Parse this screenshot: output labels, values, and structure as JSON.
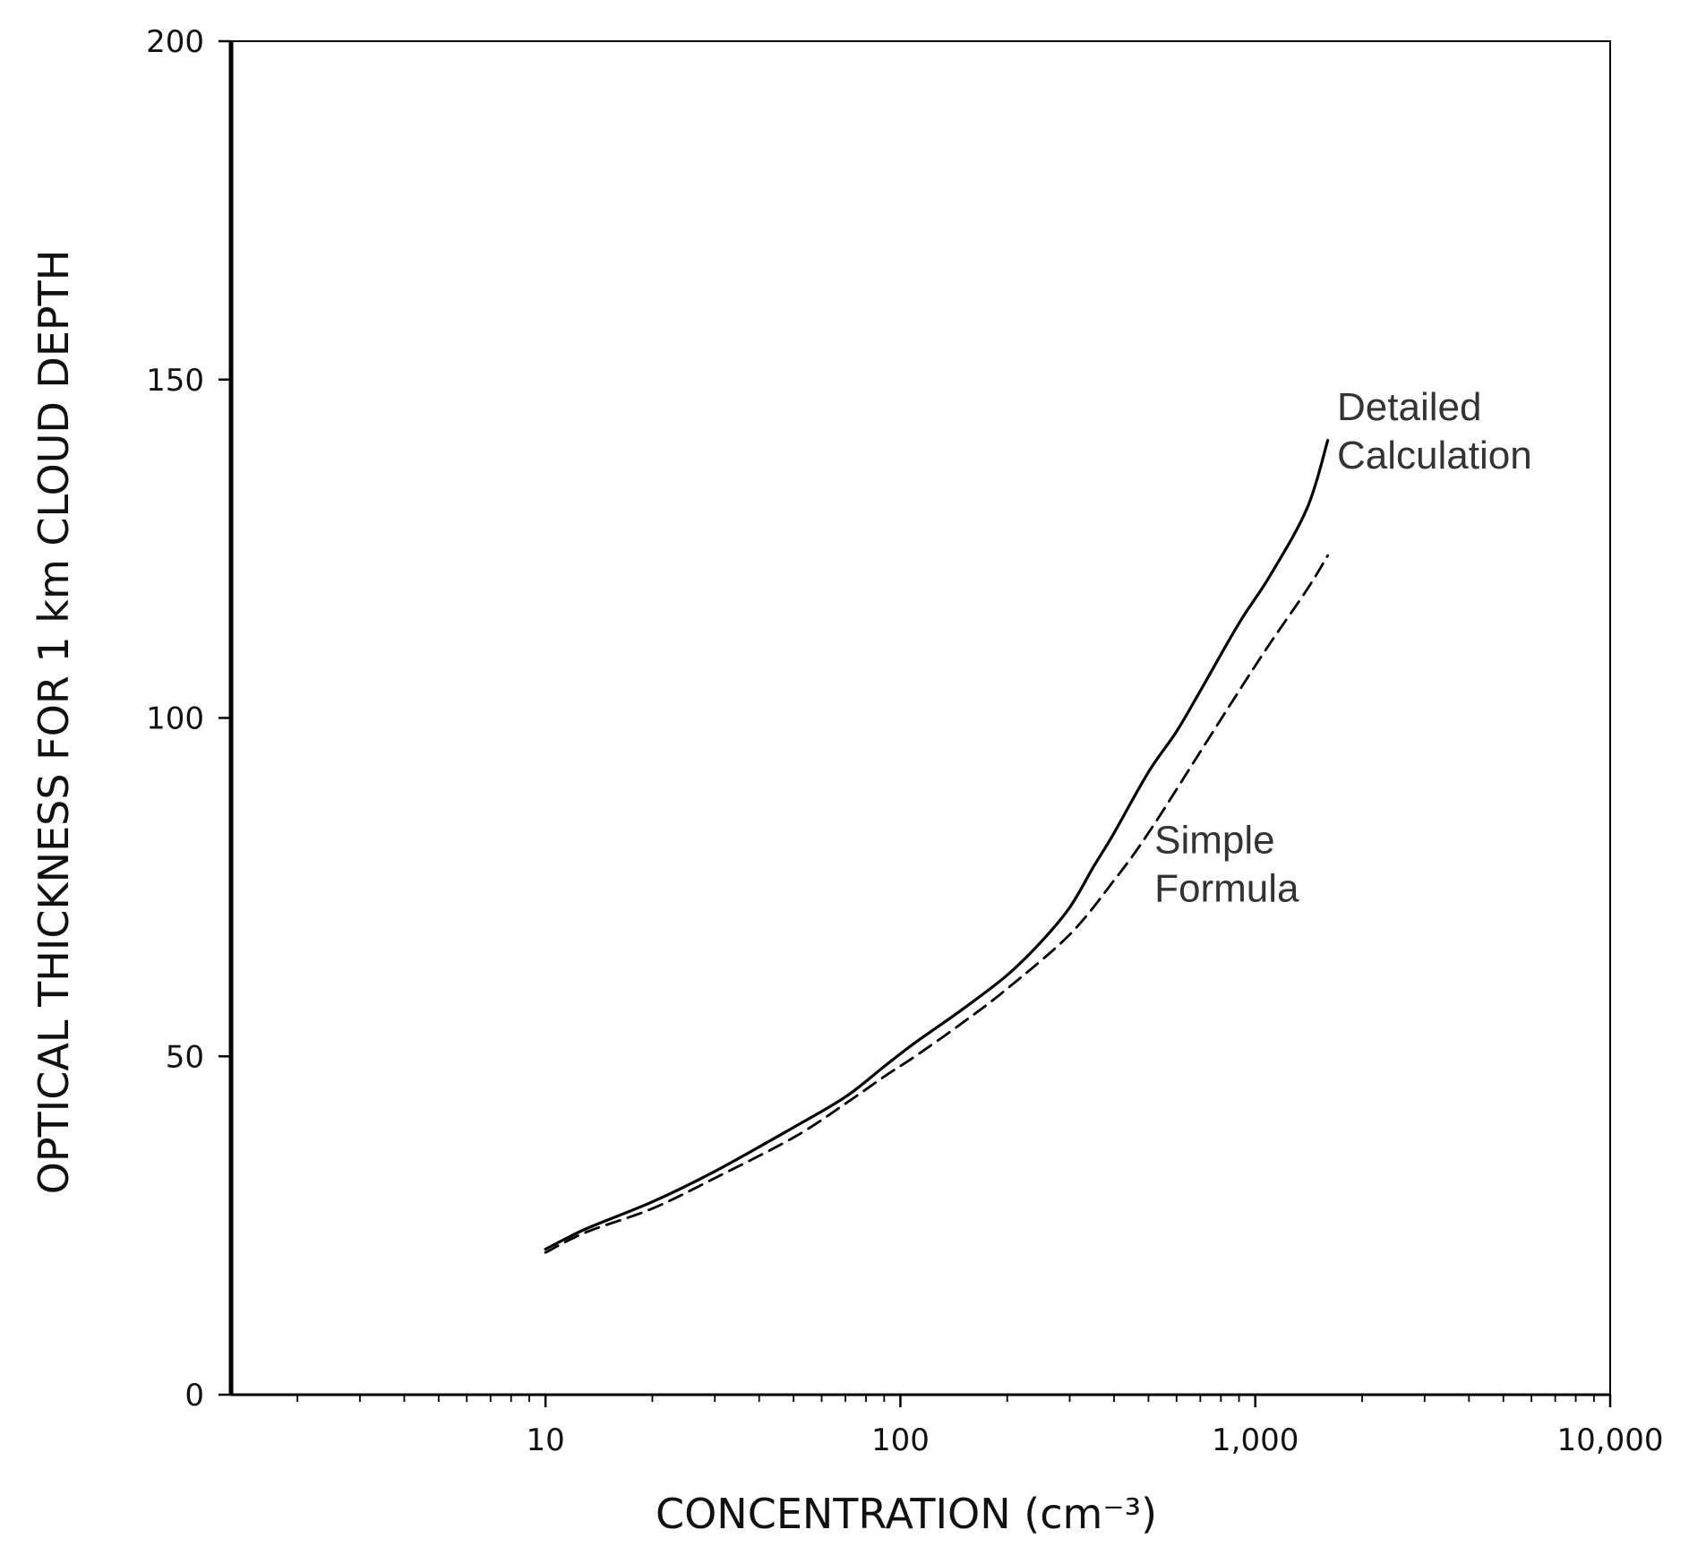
{
  "chart_data": {
    "type": "line",
    "xlabel": "CONCENTRATION   (cm⁻³)",
    "ylabel": "OPTICAL THICKNESS FOR 1 km CLOUD DEPTH",
    "xscale": "log",
    "xlim": [
      1.3,
      10000
    ],
    "ylim": [
      0,
      200
    ],
    "x_ticks": [
      10,
      100,
      1000,
      10000
    ],
    "x_tick_labels": [
      "10",
      "100",
      "1,000",
      "10,000"
    ],
    "y_ticks": [
      0,
      50,
      100,
      150,
      200
    ],
    "y_tick_labels": [
      "0",
      "50",
      "100",
      "150",
      "200"
    ],
    "grid": false,
    "series": [
      {
        "name": "Detailed Calculation",
        "style": "solid",
        "color": "#000000",
        "x": [
          10,
          13,
          20,
          30,
          50,
          70,
          90,
          110,
          150,
          200,
          250,
          300,
          350,
          400,
          500,
          600,
          700,
          900,
          1100,
          1400,
          1600
        ],
        "y": [
          21.5,
          24.5,
          28.5,
          33,
          39.5,
          44,
          48.5,
          52,
          57,
          62,
          67,
          72,
          78,
          83,
          92,
          98,
          104,
          114,
          121,
          131,
          141
        ]
      },
      {
        "name": "Simple Formula",
        "style": "dashed",
        "color": "#000000",
        "x": [
          10,
          13,
          20,
          30,
          50,
          70,
          90,
          110,
          150,
          200,
          300,
          400,
          500,
          700,
          900,
          1100,
          1400,
          1600
        ],
        "y": [
          21,
          24,
          27.5,
          32,
          38,
          43,
          47,
          50,
          55,
          60,
          68,
          76,
          83,
          95,
          104,
          111,
          119,
          124
        ]
      }
    ],
    "annotations": [
      {
        "lines": [
          "Detailed",
          "Calculation"
        ],
        "x": 1700,
        "y": 144
      },
      {
        "lines": [
          "Simple",
          "Formula"
        ],
        "x": 520,
        "y": 80
      }
    ]
  }
}
